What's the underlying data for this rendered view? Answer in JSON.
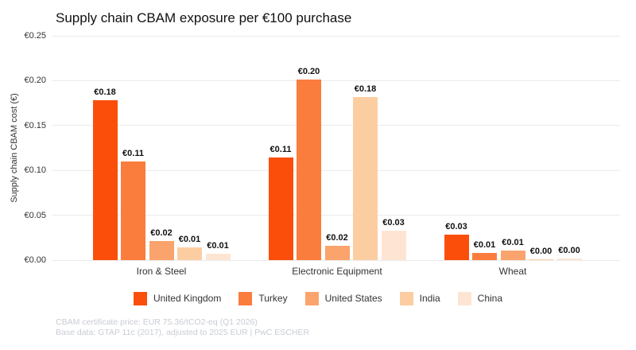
{
  "title": "Supply chain CBAM exposure per €100 purchase",
  "chart_data": {
    "type": "bar",
    "categories": [
      "Iron & Steel",
      "Electronic Equipment",
      "Wheat"
    ],
    "series": [
      {
        "name": "United Kingdom",
        "color": "#FB4E0A",
        "values": [
          0.178,
          0.114,
          0.028
        ],
        "point_labels": [
          "€0.18",
          "€0.11",
          "€0.03"
        ]
      },
      {
        "name": "Turkey",
        "color": "#FA7D3E",
        "values": [
          0.11,
          0.201,
          0.008
        ],
        "point_labels": [
          "€0.11",
          "€0.20",
          "€0.01"
        ]
      },
      {
        "name": "United States",
        "color": "#FBA36C",
        "values": [
          0.021,
          0.016,
          0.011
        ],
        "point_labels": [
          "€0.02",
          "€0.02",
          "€0.01"
        ]
      },
      {
        "name": "India",
        "color": "#FDCDA2",
        "values": [
          0.014,
          0.182,
          0.0005
        ],
        "point_labels": [
          "€0.01",
          "€0.18",
          "€0.00"
        ]
      },
      {
        "name": "China",
        "color": "#FEE5D3",
        "values": [
          0.007,
          0.033,
          0.002
        ],
        "point_labels": [
          "€0.01",
          "€0.03",
          "€0.00"
        ]
      }
    ],
    "ylabel": "Supply chain CBAM cost (€)",
    "xlabel": "",
    "ylim": [
      0,
      0.25
    ],
    "yticks": [
      0,
      0.05,
      0.1,
      0.15,
      0.2,
      0.25
    ],
    "ytick_labels": [
      "€0.00",
      "€0.05",
      "€0.10",
      "€0.15",
      "€0.20",
      "€0.25"
    ],
    "grid": true,
    "legend_position": "bottom"
  },
  "footnote": {
    "line1": "CBAM certificate price: EUR 75.36/tCO2-eq (Q1 2026)",
    "line2": "Base data: GTAP 11c (2017), adjusted to 2025 EUR | PwC ESCHER"
  }
}
